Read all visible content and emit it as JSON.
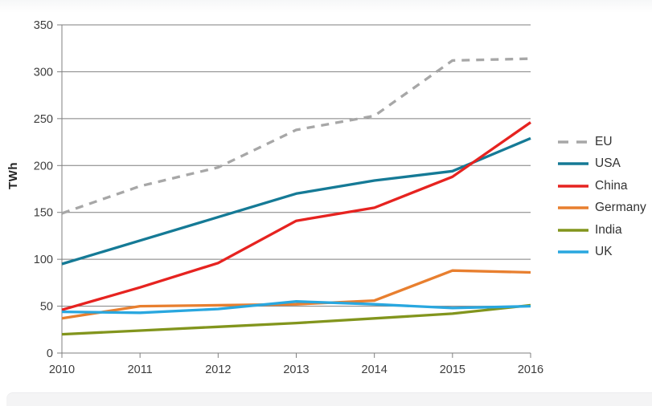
{
  "chart_data": {
    "type": "line",
    "title": "",
    "ylabel": "TWh",
    "xlabel": "",
    "x": [
      2010,
      2011,
      2012,
      2013,
      2014,
      2015,
      2016
    ],
    "ylim": [
      0,
      350
    ],
    "ytick_step": 50,
    "grid": "horizontal gridlines on",
    "legend_position": "right",
    "axis_color": "#7f7f7f",
    "tick_label_color": "#3d3d3d",
    "series": [
      {
        "name": "EU",
        "color": "#a7a7a7",
        "dashed": true,
        "values": [
          149,
          178,
          198,
          238,
          253,
          312,
          314
        ]
      },
      {
        "name": "USA",
        "color": "#157a96",
        "dashed": false,
        "values": [
          95,
          120,
          145,
          170,
          184,
          194,
          229
        ]
      },
      {
        "name": "China",
        "color": "#e62320",
        "dashed": false,
        "values": [
          46,
          70,
          96,
          141,
          155,
          188,
          246
        ]
      },
      {
        "name": "Germany",
        "color": "#e87f2f",
        "dashed": false,
        "values": [
          37,
          50,
          51,
          52,
          56,
          88,
          86
        ]
      },
      {
        "name": "India",
        "color": "#82951d",
        "dashed": false,
        "values": [
          20,
          24,
          28,
          32,
          37,
          42,
          51
        ]
      },
      {
        "name": "UK",
        "color": "#29a7df",
        "dashed": false,
        "values": [
          44,
          43,
          47,
          55,
          52,
          48,
          50
        ]
      }
    ]
  }
}
